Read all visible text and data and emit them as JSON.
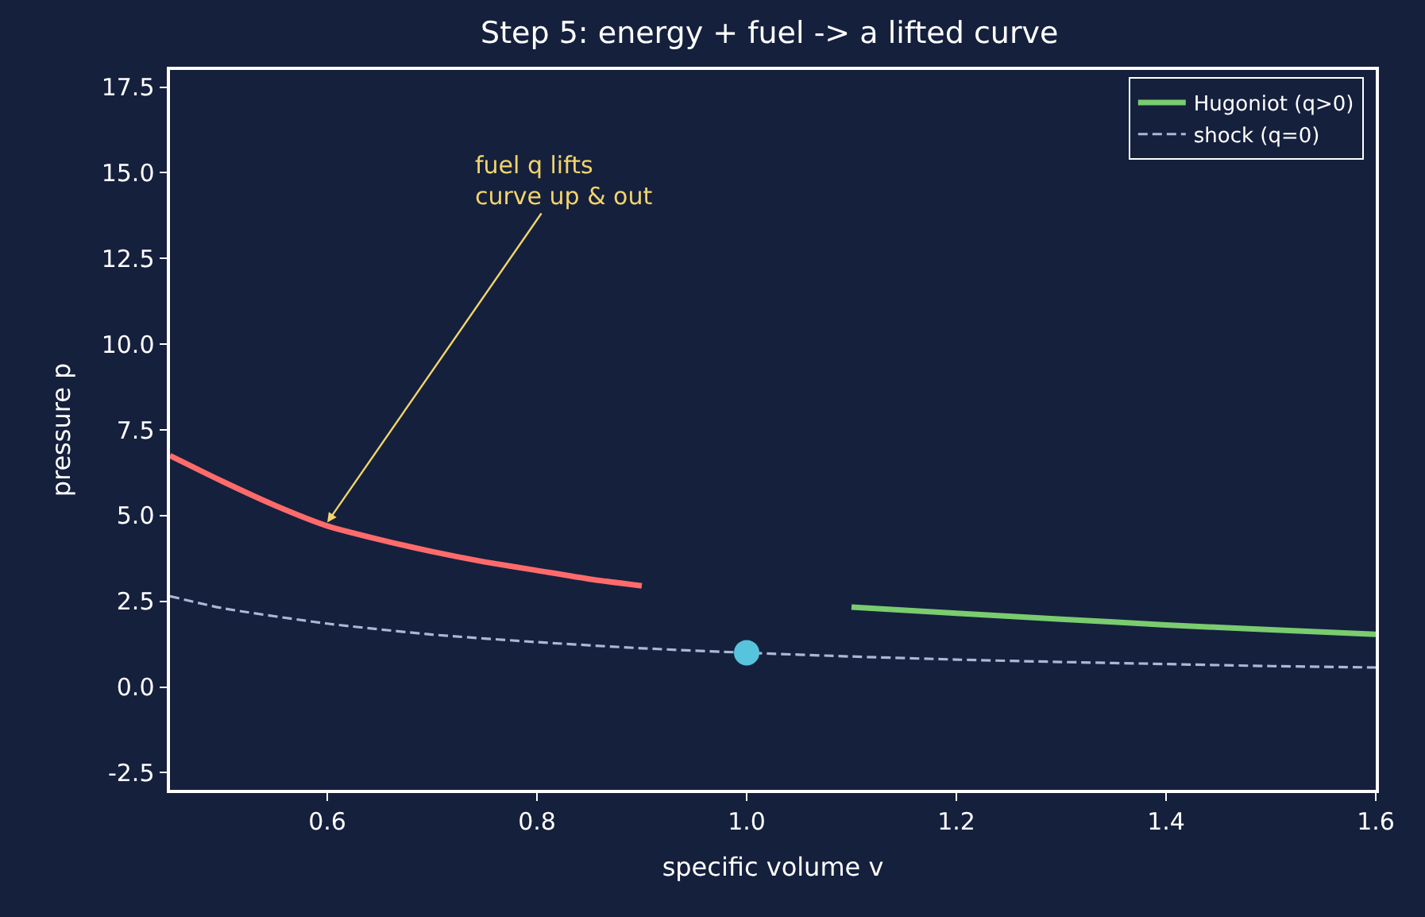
{
  "chart_data": {
    "type": "line",
    "title": "Step 5: energy + fuel -> a lifted curve",
    "xlabel": "specific volume v",
    "ylabel": "pressure p",
    "xlim": [
      0.45,
      1.6
    ],
    "xticks": [
      0.6,
      0.8,
      {
        "value": 1,
        "label": "1.0"
      },
      1.2,
      1.4,
      1.6
    ],
    "ylim": [
      -3,
      18
    ],
    "yticks": [
      -2.5,
      {
        "value": 0,
        "label": "0.0"
      },
      2.5,
      {
        "value": 5,
        "label": "5.0"
      },
      7.5,
      {
        "value": 10,
        "label": "10.0"
      },
      12.5,
      {
        "value": 15,
        "label": "15.0"
      },
      17.5
    ],
    "grid": false,
    "legend": "top right",
    "series": [
      {
        "color": "#ff6b6b",
        "x": [
          0.45,
          0.5,
          0.55,
          0.6,
          0.65,
          0.7,
          0.75,
          0.8,
          0.85,
          0.9
        ],
        "values": [
          6.75,
          6.0,
          5.3,
          4.7,
          4.3,
          3.95,
          3.65,
          3.4,
          3.15,
          2.95
        ]
      },
      {
        "name": "Hugoniot (q>0)",
        "color": "#7acc6e",
        "x": [
          1.1,
          1.2,
          1.3,
          1.4,
          1.5,
          1.6
        ],
        "values": [
          2.33,
          2.15,
          1.98,
          1.81,
          1.67,
          1.54
        ]
      },
      {
        "name": "shock (q=0)",
        "color": "#a9b8d6",
        "line_style": "dashed",
        "x": [
          0.45,
          0.5,
          0.6,
          0.7,
          0.8,
          0.9,
          1.0,
          1.1,
          1.2,
          1.3,
          1.4,
          1.5,
          1.6
        ],
        "values": [
          2.65,
          2.3,
          1.85,
          1.53,
          1.31,
          1.13,
          1.0,
          0.89,
          0.8,
          0.73,
          0.67,
          0.61,
          0.57
        ]
      },
      {
        "type": "scatter",
        "marker": "circle",
        "color": "#56c4dc",
        "x": [
          1.0
        ],
        "values": [
          1.0
        ]
      }
    ],
    "annotations": [
      {
        "text": "fuel q lifts\ncurve up & out",
        "x": 0.6,
        "y": 4.8
      }
    ]
  }
}
